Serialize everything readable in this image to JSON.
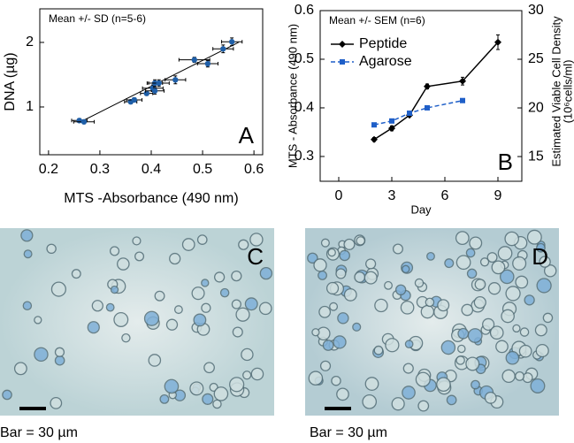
{
  "chart_data": [
    {
      "type": "scatter",
      "xlabel": "MTS -Absorbance (490 nm)",
      "ylabel": "DNA (µg)",
      "annotation": "Mean +/- SD (n=5-6)",
      "panel_label": "A",
      "x": [
        0.26,
        0.269,
        0.36,
        0.367,
        0.391,
        0.403,
        0.407,
        0.407,
        0.415,
        0.447,
        0.484,
        0.51,
        0.54,
        0.557
      ],
      "values": [
        0.79,
        0.77,
        1.08,
        1.11,
        1.21,
        1.29,
        1.37,
        1.25,
        1.37,
        1.42,
        1.73,
        1.67,
        1.9,
        2.01
      ],
      "xerr": [
        0.015,
        0.02,
        0.012,
        0.015,
        0.012,
        0.02,
        0.015,
        0.018,
        0.02,
        0.02,
        0.03,
        0.02,
        0.02,
        0.02
      ],
      "yerr": [
        0.03,
        0.03,
        0.03,
        0.03,
        0.03,
        0.05,
        0.05,
        0.05,
        0.05,
        0.06,
        0.04,
        0.05,
        0.06,
        0.06
      ],
      "color": "#1f5fa8",
      "fit": {
        "x": [
          0.26,
          0.57
        ],
        "y": [
          0.76,
          2.0
        ]
      },
      "xlim": [
        0.183,
        0.617
      ],
      "xticks": [
        0.2,
        0.3,
        0.4,
        0.5,
        0.6
      ],
      "ylim": [
        0.26,
        2.52
      ],
      "yticks": [
        1,
        2
      ]
    },
    {
      "type": "line",
      "xlabel": "Day",
      "ylabel": "MTS - Absorbance (490 nm)",
      "y2label": [
        "Estimated Viable Cell Density",
        "(10⁶cells/ml)"
      ],
      "annotation": "Mean +/- SEM (n=6)",
      "panel_label": "B",
      "legend": "upper left",
      "series": [
        {
          "name": "Peptide",
          "color": "#000000",
          "dash": false,
          "marker": "diamond",
          "x": [
            2,
            3,
            4,
            5,
            7,
            9
          ],
          "values": [
            0.335,
            0.358,
            0.385,
            0.444,
            0.455,
            0.535
          ],
          "errors": [
            0.004,
            0.005,
            0.003,
            0.005,
            0.008,
            0.015
          ]
        },
        {
          "name": "Agarose",
          "color": "#1f5fc8",
          "dash": true,
          "marker": "square",
          "x": [
            2,
            3,
            4,
            5,
            7
          ],
          "values": [
            0.365,
            0.373,
            0.389,
            0.4,
            0.415
          ]
        }
      ],
      "xlim": [
        -1.05,
        10.35
      ],
      "xticks": [
        0,
        3,
        6,
        9
      ],
      "ylim": [
        0.249,
        0.6
      ],
      "yticks": [
        0.3,
        0.4,
        0.5,
        0.6
      ],
      "y2lim": [
        12.46,
        30
      ],
      "y2ticks": [
        15,
        20,
        25,
        30
      ]
    }
  ],
  "images": [
    {
      "label": "C",
      "scale_bar": "Bar = 30 µm",
      "tint": "#bcd3d6"
    },
    {
      "label": "D",
      "scale_bar": "Bar = 30 µm",
      "tint": "#b4ccd3"
    }
  ]
}
